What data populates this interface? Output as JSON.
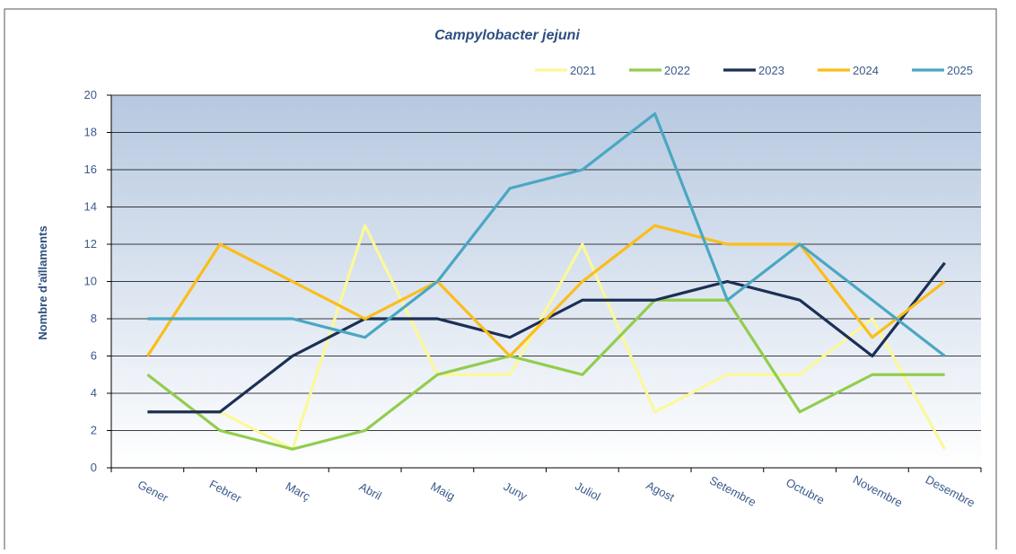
{
  "chart_data": {
    "type": "line",
    "title": "Campylobacter jejuni",
    "ylabel": "Nombre d'aïllaments",
    "categories": [
      "Gener",
      "Febrer",
      "Març",
      "Abril",
      "Maig",
      "Juny",
      "Juliol",
      "Agost",
      "Setembre",
      "Octubre",
      "Novembre",
      "Desembre"
    ],
    "series": [
      {
        "name": "2021",
        "color": "#fbf89a",
        "values": [
          3,
          3,
          1,
          13,
          5,
          5,
          12,
          3,
          5,
          5,
          8,
          1
        ]
      },
      {
        "name": "2022",
        "color": "#92cd4e",
        "values": [
          5,
          2,
          1,
          2,
          5,
          6,
          5,
          9,
          9,
          3,
          5,
          5
        ]
      },
      {
        "name": "2023",
        "color": "#1c2f55",
        "values": [
          3,
          3,
          6,
          8,
          8,
          7,
          9,
          9,
          10,
          9,
          6,
          11
        ]
      },
      {
        "name": "2024",
        "color": "#fbbd1a",
        "values": [
          6,
          12,
          10,
          8,
          10,
          6,
          10,
          13,
          12,
          12,
          7,
          10
        ]
      },
      {
        "name": "2025",
        "color": "#4aa7c2",
        "values": [
          8,
          8,
          8,
          7,
          10,
          15,
          16,
          19,
          9,
          12,
          9,
          6
        ]
      }
    ],
    "ylim": [
      0,
      20
    ],
    "yticks": [
      0,
      2,
      4,
      6,
      8,
      10,
      12,
      14,
      16,
      18,
      20
    ],
    "grid": true
  }
}
